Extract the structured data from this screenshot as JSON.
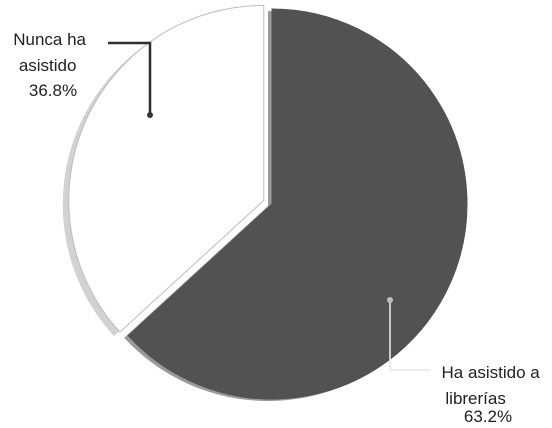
{
  "chart_data": {
    "type": "pie",
    "title": "",
    "slices": [
      {
        "label_lines": [
          "Ha asistido a",
          "librerías"
        ],
        "value_label": "63.2%",
        "value": 63.2,
        "color": "#525252"
      },
      {
        "label_lines": [
          "Nunca ha",
          "asistido"
        ],
        "value_label": "36.8%",
        "value": 36.8,
        "color": "#ffffff"
      }
    ],
    "start_angle_deg": 0,
    "direction": "clockwise",
    "exploded_slice": "Nunca ha asistido",
    "legend": "none"
  }
}
